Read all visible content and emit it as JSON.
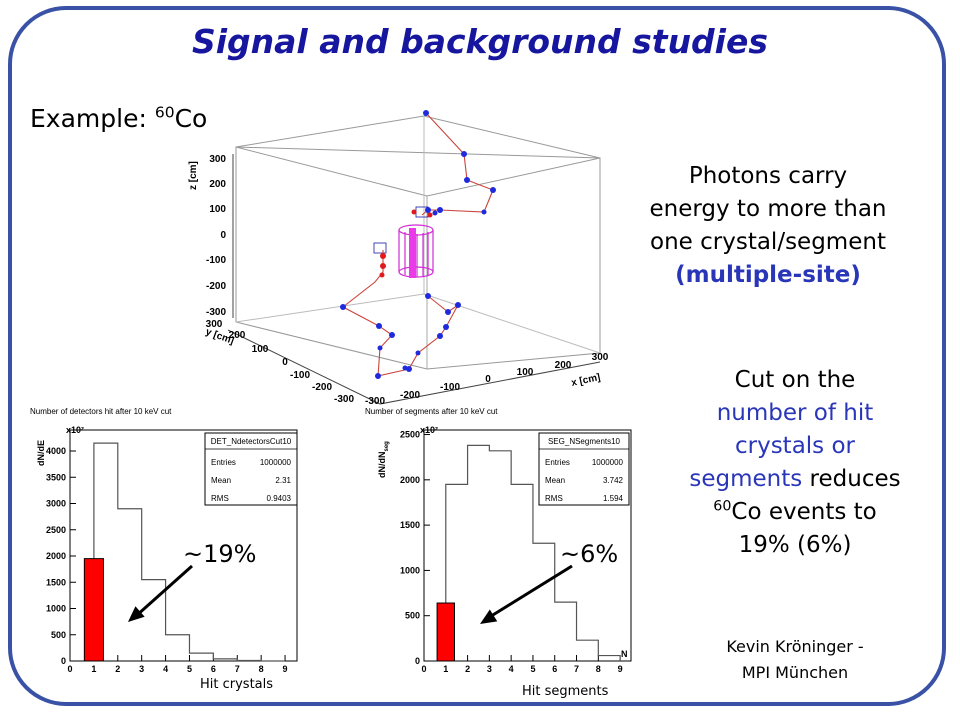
{
  "slide": {
    "title": "Signal and background studies",
    "example_prefix": "Example: ",
    "example_mass": "60",
    "example_element": "Co",
    "text1_line1": "Photons carry",
    "text1_line2": "energy to more than",
    "text1_line3": "one crystal/segment",
    "text1_line4": "(multiple-site)",
    "text2_line1": "Cut on the",
    "text2_line2": "number of hit",
    "text2_line3": "crystals or",
    "text2_line4a": "segments",
    "text2_line4b": " reduces",
    "text2_sup": "60",
    "text2_line5": "Co events to",
    "text2_line6": "19% (6%)",
    "author_line1": "Kevin Kröninger -",
    "author_line2": "MPI München",
    "caption_left": "Hit crystals",
    "caption_right": "Hit segments",
    "pct_left": "~19%",
    "pct_right": "~6%",
    "colors": {
      "title": "#17169e",
      "frame": "#3a52a6",
      "highlight": "#2a36b8",
      "cut_bar": "#ff0000"
    }
  },
  "plot3d": {
    "z_label": "z [cm]",
    "y_label": "y [cm]",
    "x_label": "x [cm]",
    "z_ticks": [
      "300",
      "200",
      "100",
      "0",
      "-100",
      "-200",
      "-300"
    ],
    "y_ticks": [
      "300",
      "200",
      "100",
      "0",
      "-100",
      "-200",
      "-300"
    ],
    "x_ticks": [
      "-300",
      "-200",
      "-100",
      "0",
      "100",
      "200",
      "300"
    ]
  },
  "chart_data": [
    {
      "type": "bar",
      "title": "Number of detectors hit after 10 keV cut",
      "ylabel": "dN/dE",
      "y_multiplier": "x10²",
      "x_ticks": [
        "0",
        "1",
        "2",
        "3",
        "4",
        "5",
        "6",
        "7",
        "8",
        "9"
      ],
      "y_ticks": [
        "0",
        "500",
        "1000",
        "1500",
        "2000",
        "2500",
        "3000",
        "3500",
        "4000"
      ],
      "xlim": [
        0,
        9.5
      ],
      "ylim": [
        0,
        4400
      ],
      "bins": [
        [
          1,
          2,
          4150
        ],
        [
          2,
          3,
          2900
        ],
        [
          3,
          4,
          1550
        ],
        [
          4,
          5,
          500
        ],
        [
          5,
          6,
          150
        ],
        [
          6,
          7,
          40
        ],
        [
          7,
          8,
          10
        ],
        [
          8,
          9,
          0
        ]
      ],
      "highlight_bin": [
        0.6,
        1.4,
        1950
      ],
      "stats": {
        "name": "DET_NdetectorsCut10",
        "entries_label": "Entries",
        "entries": "1000000",
        "mean_label": "Mean",
        "mean": "2.31",
        "rms_label": "RMS",
        "rms": "0.9403"
      }
    },
    {
      "type": "bar",
      "title": "Number of segments after 10 keV cut",
      "ylabel": "dN/dN",
      "ylabel_sub": "seg",
      "y_multiplier": "x10²",
      "xlabel": "N",
      "x_ticks": [
        "0",
        "1",
        "2",
        "3",
        "4",
        "5",
        "6",
        "7",
        "8",
        "9"
      ],
      "y_ticks": [
        "0",
        "500",
        "1000",
        "1500",
        "2000",
        "2500"
      ],
      "xlim": [
        0,
        9.5
      ],
      "ylim": [
        0,
        2550
      ],
      "bins": [
        [
          1,
          2,
          1950
        ],
        [
          2,
          3,
          2380
        ],
        [
          3,
          4,
          2320
        ],
        [
          4,
          5,
          1950
        ],
        [
          5,
          6,
          1300
        ],
        [
          6,
          7,
          650
        ],
        [
          7,
          8,
          230
        ],
        [
          8,
          9,
          60
        ]
      ],
      "highlight_bin": [
        0.6,
        1.4,
        640
      ],
      "stats": {
        "name": "SEG_NSegments10",
        "entries_label": "Entries",
        "entries": "1000000",
        "mean_label": "Mean",
        "mean": "3.742",
        "rms_label": "RMS",
        "rms": "1.594"
      }
    }
  ]
}
